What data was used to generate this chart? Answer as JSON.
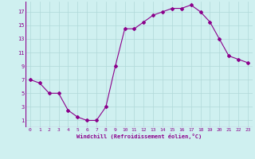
{
  "x": [
    0,
    1,
    2,
    3,
    4,
    5,
    6,
    7,
    8,
    9,
    10,
    11,
    12,
    13,
    14,
    15,
    16,
    17,
    18,
    19,
    20,
    21,
    22,
    23
  ],
  "y": [
    7,
    6.5,
    5,
    5,
    2.5,
    1.5,
    1,
    1,
    3,
    9,
    14.5,
    14.5,
    15.5,
    16.5,
    17,
    17.5,
    17.5,
    18,
    17,
    15.5,
    13,
    10.5,
    10,
    9.5
  ],
  "line_color": "#8B008B",
  "marker": "D",
  "marker_size": 2,
  "bg_color": "#cff0f0",
  "grid_color": "#b0d8d8",
  "xlabel": "Windchill (Refroidissement éolien,°C)",
  "xlabel_color": "#8B008B",
  "tick_color": "#8B008B",
  "yticks": [
    1,
    3,
    5,
    7,
    9,
    11,
    13,
    15,
    17
  ],
  "xticks": [
    0,
    1,
    2,
    3,
    4,
    5,
    6,
    7,
    8,
    9,
    10,
    11,
    12,
    13,
    14,
    15,
    16,
    17,
    18,
    19,
    20,
    21,
    22,
    23
  ],
  "ylim": [
    0,
    18.5
  ],
  "xlim": [
    -0.5,
    23.5
  ]
}
